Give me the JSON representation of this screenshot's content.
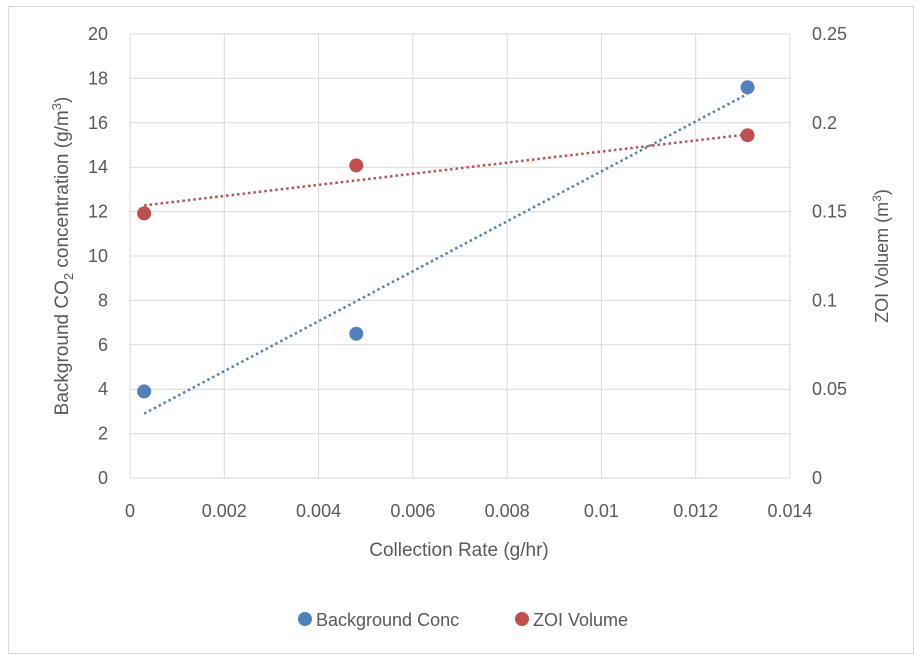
{
  "chart_data": {
    "type": "scatter",
    "title": "",
    "xlabel": "Collection Rate (g/hr)",
    "ylabel_left": {
      "main": "Background CO",
      "sub": "2",
      "rest": " concentration (g/m",
      "sup": "3",
      "end": ")"
    },
    "ylabel_right": {
      "main": "ZOI Voluem (m",
      "sup": "3",
      "end": ")"
    },
    "xlim": [
      0,
      0.014
    ],
    "ylim_left": [
      0,
      20
    ],
    "ylim_right": [
      0,
      0.25
    ],
    "x_ticks": [
      "0",
      "0.002",
      "0.004",
      "0.006",
      "0.008",
      "0.01",
      "0.012",
      "0.014"
    ],
    "y_left_ticks": [
      "0",
      "2",
      "4",
      "6",
      "8",
      "10",
      "12",
      "14",
      "16",
      "18",
      "20"
    ],
    "y_right_ticks": [
      "0",
      "0.05",
      "0.1",
      "0.15",
      "0.2",
      "0.25"
    ],
    "grid": true,
    "legend_position": "bottom",
    "series": [
      {
        "name": "Background Conc",
        "axis": "left",
        "color": "#4f81bd",
        "points": [
          [
            0.0003,
            3.9
          ],
          [
            0.0048,
            6.5
          ],
          [
            0.0131,
            17.6
          ]
        ],
        "trendline": {
          "type": "linear",
          "from": [
            0.0003,
            2.9
          ],
          "to": [
            0.0131,
            17.3
          ]
        }
      },
      {
        "name": "ZOI Volume",
        "axis": "right",
        "color": "#c0504d",
        "points": [
          [
            0.0003,
            0.149
          ],
          [
            0.0048,
            0.176
          ],
          [
            0.0131,
            0.193
          ]
        ],
        "trendline": {
          "type": "linear",
          "from": [
            0.0003,
            0.1535
          ],
          "to": [
            0.0131,
            0.1935
          ]
        }
      }
    ]
  }
}
